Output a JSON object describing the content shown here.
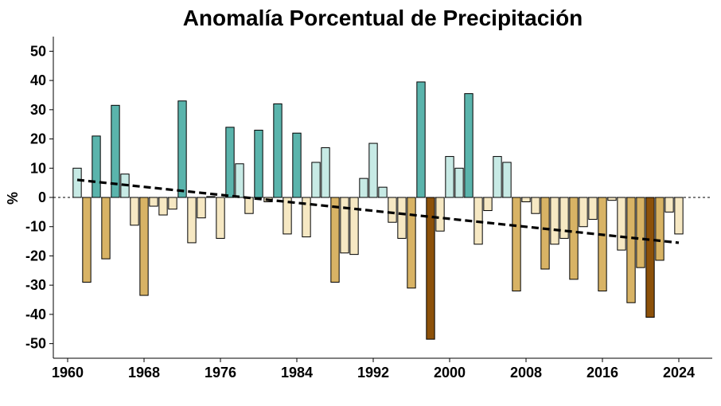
{
  "chart_data": {
    "type": "bar",
    "title": "Anomalía Porcentual de Precipitación",
    "xlabel": "",
    "ylabel": "%",
    "ylim": [
      -55,
      55
    ],
    "xlim": [
      1958.5,
      2027.5
    ],
    "yticks": [
      -50,
      -40,
      -30,
      -20,
      -10,
      0,
      10,
      20,
      30,
      40,
      50
    ],
    "ytick_labels": [
      "-50",
      "-40",
      "-30",
      "-20",
      "-10",
      "0",
      "10",
      "20",
      "30",
      "40",
      "50"
    ],
    "xticks": [
      1960,
      1968,
      1976,
      1984,
      1992,
      2000,
      2008,
      2016,
      2024
    ],
    "xtick_labels": [
      "1960",
      "1968",
      "1976",
      "1984",
      "1992",
      "2000",
      "2008",
      "2016",
      "2024"
    ],
    "grid": false,
    "legend": "none",
    "colors": {
      "strong_wet": "#5ab4ac",
      "mild_wet": "#c7eae5",
      "mild_dry": "#f6e8c3",
      "moderate_dry": "#d8b365",
      "extreme_dry": "#8c510a",
      "edge": "#000000",
      "trend": "#000000"
    },
    "categories": [
      "strong_wet",
      "mild_wet",
      "mild_dry",
      "moderate_dry",
      "extreme_dry"
    ],
    "bars": [
      {
        "year": 1961,
        "value": 10,
        "class": "mild_wet"
      },
      {
        "year": 1962,
        "value": -29,
        "class": "moderate_dry"
      },
      {
        "year": 1963,
        "value": 21,
        "class": "strong_wet"
      },
      {
        "year": 1964,
        "value": -21,
        "class": "moderate_dry"
      },
      {
        "year": 1965,
        "value": 31.5,
        "class": "strong_wet"
      },
      {
        "year": 1966,
        "value": 8,
        "class": "mild_wet"
      },
      {
        "year": 1967,
        "value": -9.5,
        "class": "mild_dry"
      },
      {
        "year": 1968,
        "value": -33.5,
        "class": "moderate_dry"
      },
      {
        "year": 1969,
        "value": -3,
        "class": "mild_dry"
      },
      {
        "year": 1970,
        "value": -6,
        "class": "mild_dry"
      },
      {
        "year": 1971,
        "value": -4,
        "class": "mild_dry"
      },
      {
        "year": 1972,
        "value": 33,
        "class": "strong_wet"
      },
      {
        "year": 1973,
        "value": -15.5,
        "class": "mild_dry"
      },
      {
        "year": 1974,
        "value": -7,
        "class": "mild_dry"
      },
      {
        "year": 1975,
        "value": 0.3,
        "class": "mild_wet"
      },
      {
        "year": 1976,
        "value": -14,
        "class": "mild_dry"
      },
      {
        "year": 1977,
        "value": 24,
        "class": "strong_wet"
      },
      {
        "year": 1978,
        "value": 11.5,
        "class": "mild_wet"
      },
      {
        "year": 1979,
        "value": -5.5,
        "class": "mild_dry"
      },
      {
        "year": 1980,
        "value": 23,
        "class": "strong_wet"
      },
      {
        "year": 1981,
        "value": -1.5,
        "class": "mild_dry"
      },
      {
        "year": 1982,
        "value": 32,
        "class": "strong_wet"
      },
      {
        "year": 1983,
        "value": -12.5,
        "class": "mild_dry"
      },
      {
        "year": 1984,
        "value": 22,
        "class": "strong_wet"
      },
      {
        "year": 1985,
        "value": -13.5,
        "class": "mild_dry"
      },
      {
        "year": 1986,
        "value": 12,
        "class": "mild_wet"
      },
      {
        "year": 1987,
        "value": 17,
        "class": "mild_wet"
      },
      {
        "year": 1988,
        "value": -29,
        "class": "moderate_dry"
      },
      {
        "year": 1989,
        "value": -19,
        "class": "mild_dry"
      },
      {
        "year": 1990,
        "value": -19.5,
        "class": "mild_dry"
      },
      {
        "year": 1991,
        "value": 6.5,
        "class": "mild_wet"
      },
      {
        "year": 1992,
        "value": 18.5,
        "class": "mild_wet"
      },
      {
        "year": 1993,
        "value": 3.5,
        "class": "mild_wet"
      },
      {
        "year": 1994,
        "value": -8.5,
        "class": "mild_dry"
      },
      {
        "year": 1995,
        "value": -14,
        "class": "mild_dry"
      },
      {
        "year": 1996,
        "value": -31,
        "class": "moderate_dry"
      },
      {
        "year": 1997,
        "value": 39.5,
        "class": "strong_wet"
      },
      {
        "year": 1998,
        "value": -48.5,
        "class": "extreme_dry"
      },
      {
        "year": 1999,
        "value": -11.5,
        "class": "mild_dry"
      },
      {
        "year": 2000,
        "value": 14,
        "class": "mild_wet"
      },
      {
        "year": 2001,
        "value": 10,
        "class": "mild_wet"
      },
      {
        "year": 2002,
        "value": 35.5,
        "class": "strong_wet"
      },
      {
        "year": 2003,
        "value": -16,
        "class": "mild_dry"
      },
      {
        "year": 2004,
        "value": -4.5,
        "class": "mild_dry"
      },
      {
        "year": 2005,
        "value": 14,
        "class": "mild_wet"
      },
      {
        "year": 2006,
        "value": 12,
        "class": "mild_wet"
      },
      {
        "year": 2007,
        "value": -32,
        "class": "moderate_dry"
      },
      {
        "year": 2008,
        "value": -1.5,
        "class": "mild_dry"
      },
      {
        "year": 2009,
        "value": -5.5,
        "class": "mild_dry"
      },
      {
        "year": 2010,
        "value": -24.5,
        "class": "moderate_dry"
      },
      {
        "year": 2011,
        "value": -16,
        "class": "mild_dry"
      },
      {
        "year": 2012,
        "value": -14,
        "class": "mild_dry"
      },
      {
        "year": 2013,
        "value": -28,
        "class": "moderate_dry"
      },
      {
        "year": 2014,
        "value": -10,
        "class": "mild_dry"
      },
      {
        "year": 2015,
        "value": -7.5,
        "class": "mild_dry"
      },
      {
        "year": 2016,
        "value": -32,
        "class": "moderate_dry"
      },
      {
        "year": 2017,
        "value": -1,
        "class": "mild_dry"
      },
      {
        "year": 2018,
        "value": -18,
        "class": "mild_dry"
      },
      {
        "year": 2019,
        "value": -36,
        "class": "moderate_dry"
      },
      {
        "year": 2020,
        "value": -24,
        "class": "moderate_dry"
      },
      {
        "year": 2021,
        "value": -41,
        "class": "extreme_dry"
      },
      {
        "year": 2022,
        "value": -21.5,
        "class": "moderate_dry"
      },
      {
        "year": 2023,
        "value": -5,
        "class": "mild_dry"
      },
      {
        "year": 2024,
        "value": -12.5,
        "class": "mild_dry"
      }
    ],
    "trend": {
      "type": "linear",
      "x": [
        1961,
        2024
      ],
      "y": [
        6,
        -15.5
      ],
      "style": "dashed"
    },
    "zero_line": {
      "y": 0,
      "style": "dotted"
    }
  }
}
